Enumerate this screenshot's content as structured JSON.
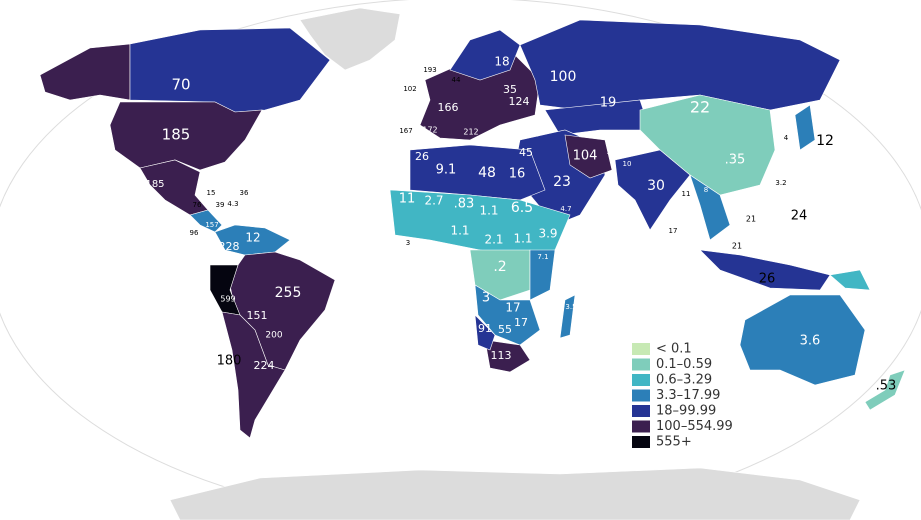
{
  "labels": [
    "70",
    "185",
    "185",
    "100",
    "22",
    "19",
    "18",
    "12",
    "24",
    "21",
    "21",
    "26",
    ".35",
    "30",
    "23",
    "16",
    "104",
    "60",
    "45",
    "16",
    "48",
    "9.1",
    "26",
    "11",
    "2.7",
    ".83",
    "1.1",
    "6.5",
    "1.1",
    "2.1",
    "1.1",
    "3.9",
    ".2",
    "3",
    "17",
    "91",
    "55",
    "17",
    "113",
    "3.6",
    ".53",
    "255",
    "228",
    "12",
    "151",
    "200",
    "224",
    "180",
    "599",
    "166",
    "124",
    "35",
    "172",
    "212",
    "167",
    "102",
    "193",
    "44",
    "157",
    "96",
    "36",
    "15",
    "39",
    "4.3",
    "76",
    "3.2",
    "4",
    "11",
    "17",
    "8",
    "10",
    "4.7",
    "7.1",
    "3.5",
    "3"
  ],
  "legend": [
    {
      "label": "< 0.1",
      "color": "#c7e9b4"
    },
    {
      "label": "0.1–0.59",
      "color": "#7fcdbb"
    },
    {
      "label": "0.6–3.29",
      "color": "#41b6c4"
    },
    {
      "label": "3.3–17.99",
      "color": "#2c7fb8"
    },
    {
      "label": "18–99.99",
      "color": "#253494"
    },
    {
      "label": "100–554.99",
      "color": "#3b1f4f"
    },
    {
      "label": "555+",
      "color": "#050510"
    }
  ]
}
